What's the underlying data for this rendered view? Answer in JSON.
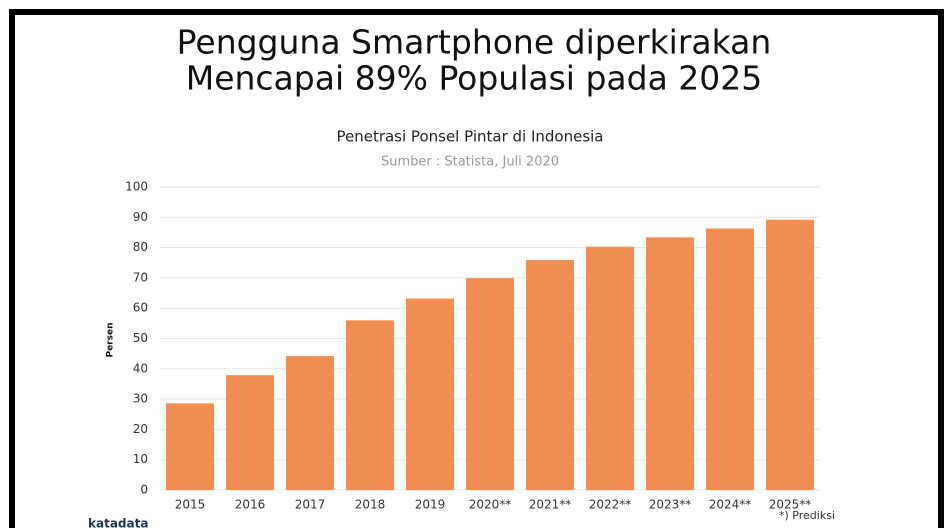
{
  "chart_data": {
    "type": "bar",
    "headline": [
      "Pengguna Smartphone diperkirakan",
      "Mencapai 89% Populasi pada 2025"
    ],
    "title": "Penetrasi Ponsel Pintar di Indonesia",
    "subtitle": "Sumber : Statista, Juli 2020",
    "y_label": "Persen",
    "categories": [
      "2015",
      "2016",
      "2017",
      "2018",
      "2019",
      "2020**",
      "2021**",
      "2022**",
      "2023**",
      "2024**",
      "2025**"
    ],
    "values": [
      28.6,
      37.9,
      44.2,
      56.0,
      63.2,
      69.9,
      75.9,
      80.3,
      83.4,
      86.3,
      89.2
    ],
    "color": "#f28e52",
    "ylim": [
      0,
      100
    ],
    "yticks": [
      0,
      10,
      20,
      30,
      40,
      50,
      60,
      70,
      80,
      90,
      100
    ],
    "grid": true,
    "footnote": "*) Prediksi",
    "logo": "katadata"
  }
}
